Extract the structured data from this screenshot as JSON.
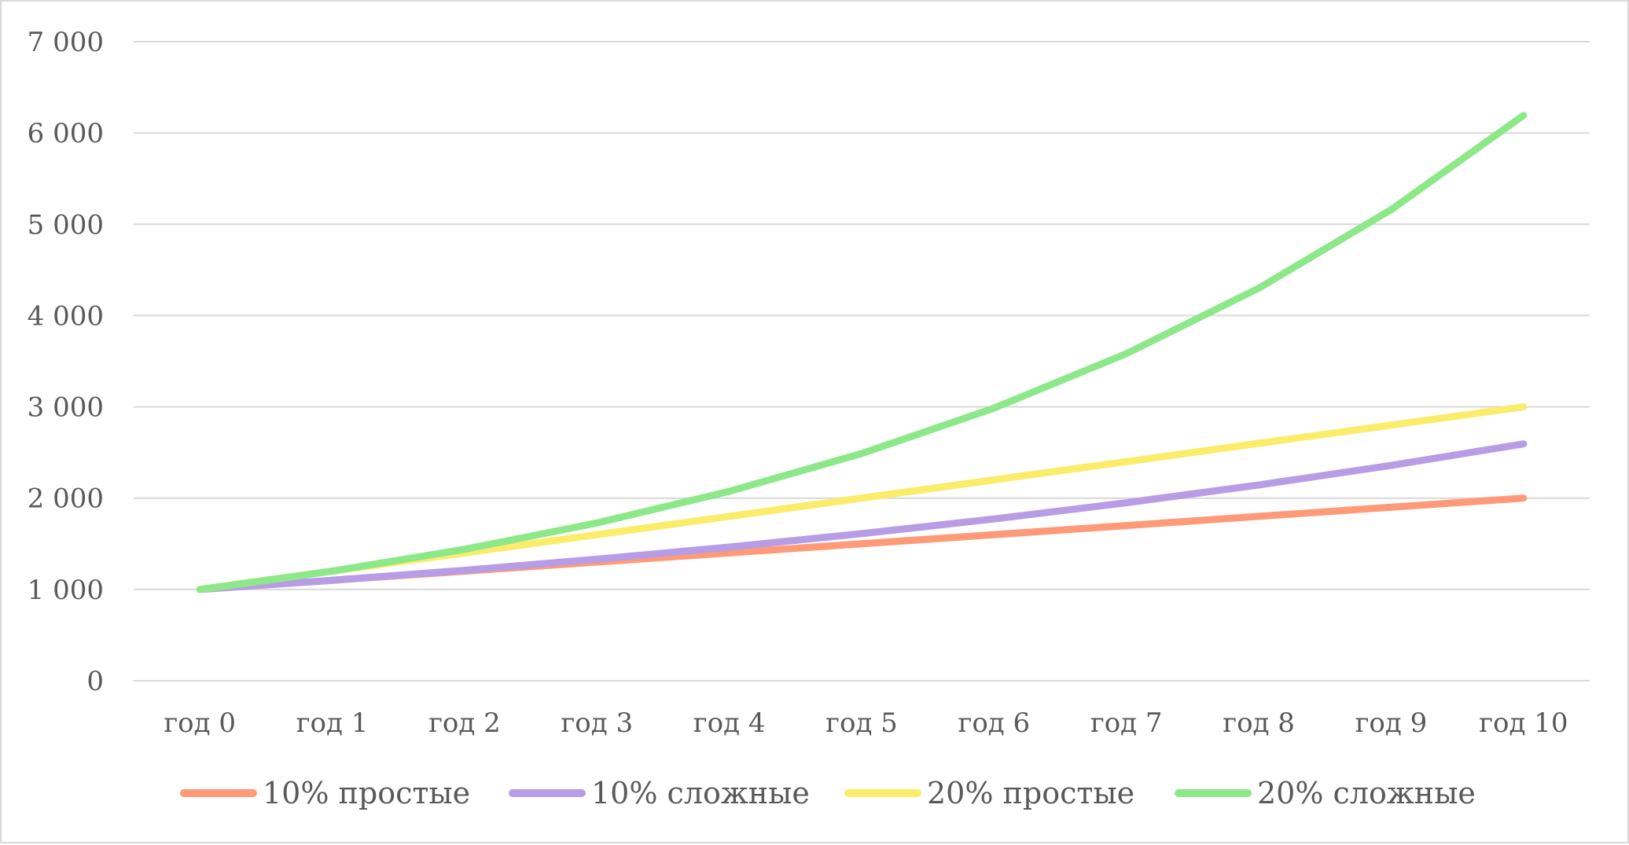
{
  "chart_data": {
    "type": "line",
    "title": "",
    "xlabel": "",
    "ylabel": "",
    "categories": [
      "год 0",
      "год 1",
      "год 2",
      "год 3",
      "год 4",
      "год 5",
      "год 6",
      "год 7",
      "год 8",
      "год 9",
      "год 10"
    ],
    "ylim": [
      0,
      7000
    ],
    "y_ticks": [
      0,
      1000,
      2000,
      3000,
      4000,
      5000,
      6000,
      7000
    ],
    "y_tick_labels": [
      "0",
      "1 000",
      "2 000",
      "3 000",
      "4 000",
      "5 000",
      "6 000",
      "7 000"
    ],
    "grid": true,
    "legend_position": "bottom",
    "series": [
      {
        "name": "10% простые",
        "color": "#ff9a78",
        "values": [
          1000,
          1100,
          1200,
          1300,
          1400,
          1500,
          1600,
          1700,
          1800,
          1900,
          2000
        ]
      },
      {
        "name": "10% сложные",
        "color": "#b79de6",
        "values": [
          1000,
          1100,
          1210,
          1331,
          1464,
          1611,
          1772,
          1949,
          2144,
          2358,
          2594
        ]
      },
      {
        "name": "20% простые",
        "color": "#fbec6a",
        "values": [
          1000,
          1200,
          1400,
          1600,
          1800,
          2000,
          2200,
          2400,
          2600,
          2800,
          3000
        ]
      },
      {
        "name": "20% сложные",
        "color": "#8de88a",
        "values": [
          1000,
          1200,
          1440,
          1728,
          2074,
          2488,
          2986,
          3583,
          4300,
          5160,
          6192
        ]
      }
    ]
  }
}
